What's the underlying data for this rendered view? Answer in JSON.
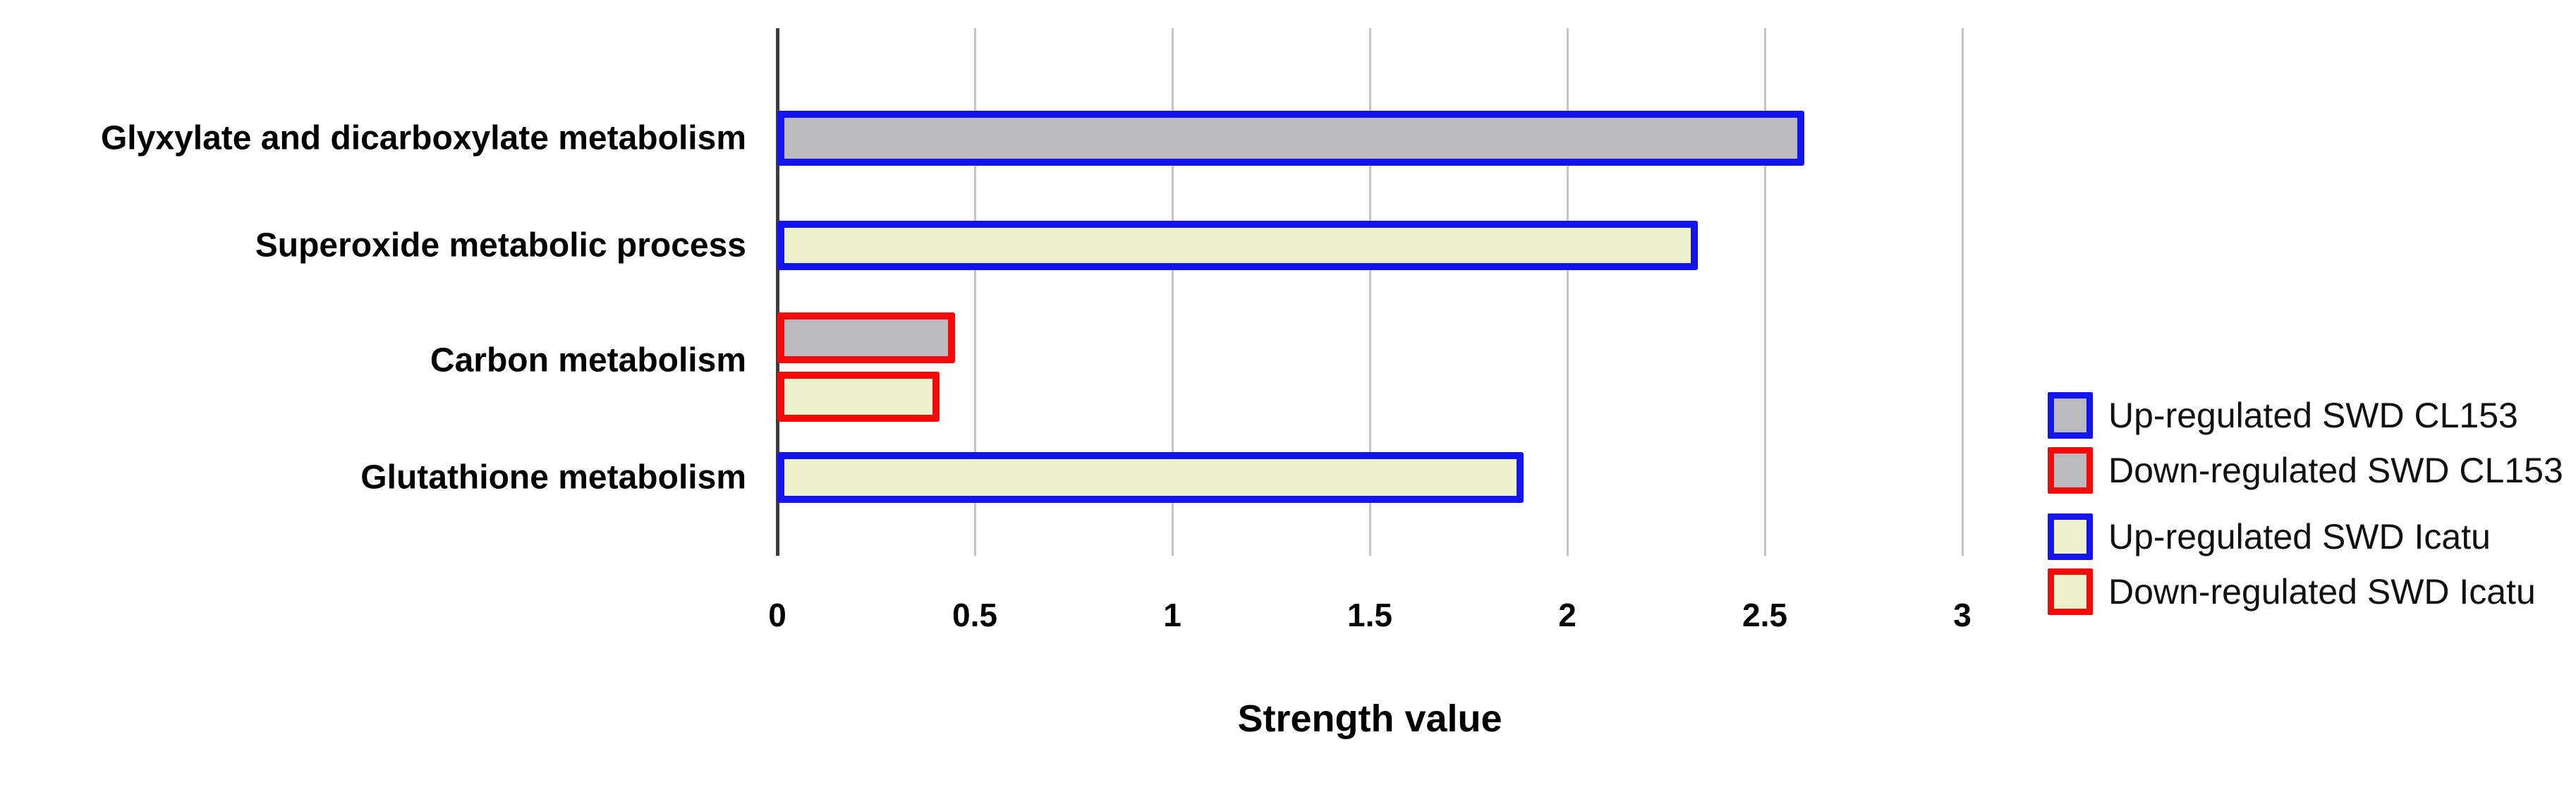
{
  "chart_data": {
    "type": "bar",
    "orientation": "horizontal",
    "title": "",
    "xlabel": "Strength value",
    "ylabel": "",
    "xlim": [
      0,
      3
    ],
    "x_tick_labels": [
      "0",
      "0.5",
      "1",
      "1.5",
      "2",
      "2.5",
      "3"
    ],
    "x_tick_values": [
      0,
      0.5,
      1,
      1.5,
      2,
      2.5,
      3
    ],
    "grid": "vertical-gridlines-on",
    "legend_position": "right",
    "categories": [
      "Glyxylate and dicarboxylate metabolism",
      "Superoxide metabolic process",
      "Carbon metabolism",
      "Glutathione metabolism"
    ],
    "bars": [
      {
        "category": "Glyxylate and dicarboxylate metabolism",
        "series": "Up-regulated SWD CL153",
        "value": 2.6,
        "fill": "#b9b9be",
        "border": "#1414f0"
      },
      {
        "category": "Superoxide metabolic process",
        "series": "Up-regulated SWD Icatu",
        "value": 2.33,
        "fill": "#eef2cc",
        "border": "#1414f0"
      },
      {
        "category": "Carbon metabolism",
        "series": "Down-regulated SWD CL153",
        "value": 0.45,
        "fill": "#b9b9be",
        "border": "#f50a0a"
      },
      {
        "category": "Carbon metabolism",
        "series": "Down-regulated SWD Icatu",
        "value": 0.41,
        "fill": "#eef2cc",
        "border": "#f50a0a"
      },
      {
        "category": "Glutathione metabolism",
        "series": "Up-regulated SWD Icatu",
        "value": 1.89,
        "fill": "#eef2cc",
        "border": "#1414f0"
      }
    ],
    "legend_groups": [
      {
        "entries": [
          {
            "label": "Up-regulated SWD CL153",
            "fill": "#b9b9be",
            "border": "#1414f0"
          },
          {
            "label": "Down-regulated SWD CL153",
            "fill": "#b9b9be",
            "border": "#f50a0a"
          }
        ]
      },
      {
        "entries": [
          {
            "label": "Up-regulated SWD Icatu",
            "fill": "#eef2cc",
            "border": "#1414f0"
          },
          {
            "label": "Down-regulated SWD Icatu",
            "fill": "#eef2cc",
            "border": "#f50a0a"
          }
        ]
      }
    ],
    "colors": {
      "fill_cl153": "#b9b9be",
      "fill_icatu": "#eef2cc",
      "border_up_regulated": "#1414f0",
      "border_down_regulated": "#f50a0a",
      "axis_line": "#3d3d3d",
      "gridline": "#c6c6c6",
      "background": "#ffffff",
      "text": "#000000"
    }
  }
}
